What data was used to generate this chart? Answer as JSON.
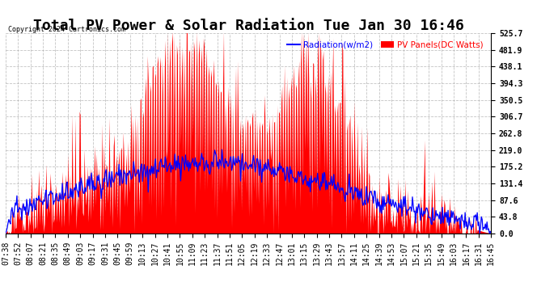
{
  "title": "Total PV Power & Solar Radiation Tue Jan 30 16:46",
  "copyright": "Copyright 2024 Cartronics.com",
  "legend_radiation": "Radiation(w/m2)",
  "legend_pv": "PV Panels(DC Watts)",
  "legend_radiation_color": "#0000ff",
  "legend_pv_color": "#ff0000",
  "y_ticks": [
    0.0,
    43.8,
    87.6,
    131.4,
    175.2,
    219.0,
    262.8,
    306.7,
    350.5,
    394.3,
    438.1,
    481.9,
    525.7
  ],
  "ylim": [
    0,
    525.7
  ],
  "background_color": "#ffffff",
  "plot_bg_color": "#ffffff",
  "grid_color": "#aaaaaa",
  "title_fontsize": 13,
  "tick_fontsize": 7,
  "x_labels": [
    "07:38",
    "07:52",
    "08:07",
    "08:21",
    "08:35",
    "08:49",
    "09:03",
    "09:17",
    "09:31",
    "09:45",
    "09:59",
    "10:13",
    "10:27",
    "10:41",
    "10:55",
    "11:09",
    "11:23",
    "11:37",
    "11:51",
    "12:05",
    "12:19",
    "12:33",
    "12:47",
    "13:01",
    "13:15",
    "13:29",
    "13:43",
    "13:57",
    "14:11",
    "14:25",
    "14:39",
    "14:53",
    "15:07",
    "15:21",
    "15:35",
    "15:49",
    "16:03",
    "16:17",
    "16:31",
    "16:45"
  ]
}
